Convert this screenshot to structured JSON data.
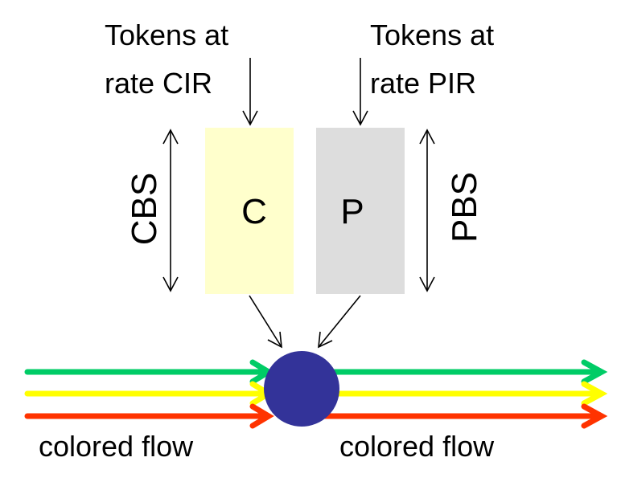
{
  "diagram": {
    "cir_label": {
      "line1": "Tokens at",
      "line2": "rate CIR"
    },
    "pir_label": {
      "line1": "Tokens at",
      "line2": "rate PIR"
    },
    "cbs_label": "CBS",
    "pbs_label": "PBS",
    "bucket_c": {
      "letter": "C",
      "fill": "#ffffcc"
    },
    "bucket_p": {
      "letter": "P",
      "fill": "#dddddd"
    },
    "meter": {
      "fill": "#333399"
    },
    "input_flow_label": "colored flow",
    "output_flow_label": "colored flow",
    "flow_colors": {
      "green": "#00cc66",
      "yellow": "#ffff00",
      "red": "#ff3300"
    }
  }
}
